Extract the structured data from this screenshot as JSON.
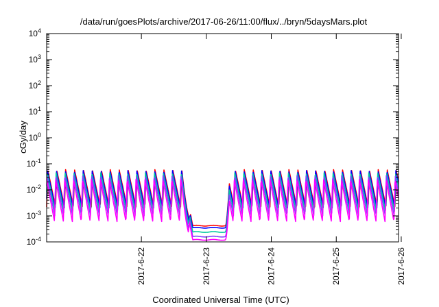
{
  "chart_data": {
    "type": "line",
    "title": "/data/run/goesPlots/archive/2017-06-26/11:00/flux/../bryn/5daysMars.plot",
    "xlabel": "Coordinated Universal Time (UTC)",
    "ylabel": "cGy/day",
    "yscale": "log",
    "ylim": [
      0.0001,
      10000
    ],
    "xlim": [
      "2017-06-21 01:00",
      "2017-06-26 11:00"
    ],
    "grid": false,
    "legend": "none",
    "x_ticks": [
      "2017-6-22",
      "2017-6-23",
      "2017-6-24",
      "2017-6-25",
      "2017-6-26"
    ],
    "y_ticks": [
      {
        "value": 0.0001,
        "base": "10",
        "exp": "-4"
      },
      {
        "value": 0.001,
        "base": "10",
        "exp": "-3"
      },
      {
        "value": 0.01,
        "base": "10",
        "exp": "-2"
      },
      {
        "value": 0.1,
        "base": "10",
        "exp": "-1"
      },
      {
        "value": 1,
        "base": "10",
        "exp": "0"
      },
      {
        "value": 10,
        "base": "10",
        "exp": "1"
      },
      {
        "value": 100,
        "base": "10",
        "exp": "2"
      },
      {
        "value": 1000,
        "base": "10",
        "exp": "3"
      },
      {
        "value": 10000,
        "base": "10",
        "exp": "4"
      }
    ],
    "cycle_hours": 3.3,
    "quiet_period": [
      "2017-06-23 03:00",
      "2017-06-23 20:30"
    ],
    "series": [
      {
        "color": "#ff0000",
        "peak": 0.06,
        "trough": 0.0022,
        "quiet": 0.00042
      },
      {
        "color": "#0000ff",
        "peak": 0.055,
        "trough": 0.002,
        "quiet": 0.00035
      },
      {
        "color": "#00c8a0",
        "peak": 0.045,
        "trough": 0.0015,
        "quiet": 0.00024
      },
      {
        "color": "#8040ff",
        "peak": 0.035,
        "trough": 0.001,
        "quiet": 0.00016
      },
      {
        "color": "#ff00ff",
        "peak": 0.025,
        "trough": 0.0006,
        "quiet": 0.00012
      }
    ]
  }
}
